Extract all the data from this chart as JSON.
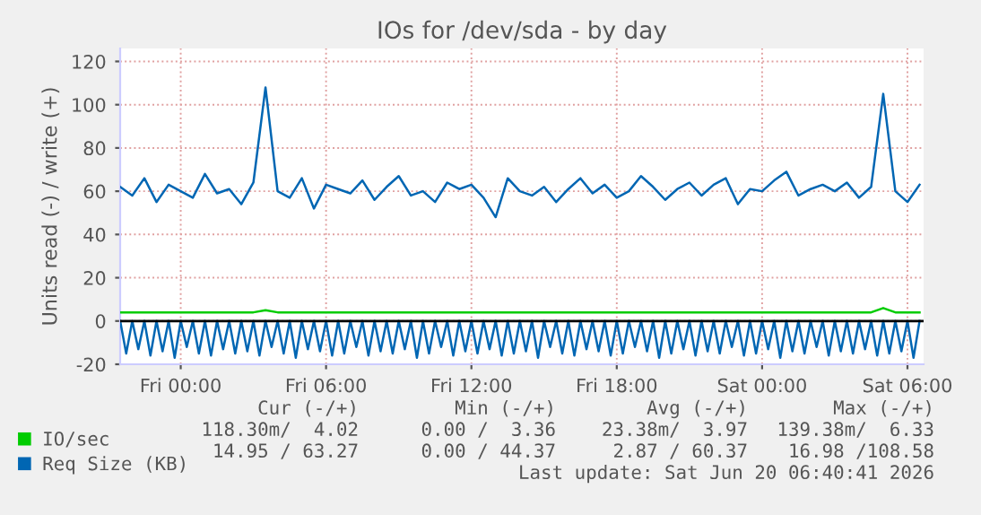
{
  "chart_data": {
    "type": "line",
    "title": "IOs for /dev/sda - by day",
    "ylabel": "Units read (-) / write (+)",
    "x": [
      "2026-06-18T21:30",
      "2026-06-18T22:00",
      "2026-06-18T22:30",
      "2026-06-18T23:00",
      "2026-06-18T23:30",
      "2026-06-19T00:00",
      "2026-06-19T00:30",
      "2026-06-19T01:00",
      "2026-06-19T01:30",
      "2026-06-19T02:00",
      "2026-06-19T02:30",
      "2026-06-19T03:00",
      "2026-06-19T03:30",
      "2026-06-19T04:00",
      "2026-06-19T04:30",
      "2026-06-19T05:00",
      "2026-06-19T05:30",
      "2026-06-19T06:00",
      "2026-06-19T06:30",
      "2026-06-19T07:00",
      "2026-06-19T07:30",
      "2026-06-19T08:00",
      "2026-06-19T08:30",
      "2026-06-19T09:00",
      "2026-06-19T09:30",
      "2026-06-19T10:00",
      "2026-06-19T10:30",
      "2026-06-19T11:00",
      "2026-06-19T11:30",
      "2026-06-19T12:00",
      "2026-06-19T12:30",
      "2026-06-19T13:00",
      "2026-06-19T13:30",
      "2026-06-19T14:00",
      "2026-06-19T14:30",
      "2026-06-19T15:00",
      "2026-06-19T15:30",
      "2026-06-19T16:00",
      "2026-06-19T16:30",
      "2026-06-19T17:00",
      "2026-06-19T17:30",
      "2026-06-19T18:00",
      "2026-06-19T18:30",
      "2026-06-19T19:00",
      "2026-06-19T19:30",
      "2026-06-19T20:00",
      "2026-06-19T20:30",
      "2026-06-19T21:00",
      "2026-06-19T21:30",
      "2026-06-19T22:00",
      "2026-06-19T22:30",
      "2026-06-19T23:00",
      "2026-06-19T23:30",
      "2026-06-20T00:00",
      "2026-06-20T00:30",
      "2026-06-20T01:00",
      "2026-06-20T01:30",
      "2026-06-20T02:00",
      "2026-06-20T02:30",
      "2026-06-20T03:00",
      "2026-06-20T03:30",
      "2026-06-20T04:00",
      "2026-06-20T04:30",
      "2026-06-20T05:00",
      "2026-06-20T05:30",
      "2026-06-20T06:00",
      "2026-06-20T06:30"
    ],
    "series": [
      {
        "name": "IO/sec",
        "color": "#00cc00",
        "values": [
          4,
          4,
          4,
          4,
          4,
          4,
          4,
          4,
          4,
          4,
          4,
          4,
          5,
          4,
          4,
          4,
          4,
          4,
          4,
          4,
          4,
          4,
          4,
          4,
          4,
          4,
          4,
          4,
          4,
          4,
          4,
          4,
          4,
          4,
          4,
          4,
          4,
          4,
          4,
          4,
          4,
          4,
          4,
          4,
          4,
          4,
          4,
          4,
          4,
          4,
          4,
          4,
          4,
          4,
          4,
          4,
          4,
          4,
          4,
          4,
          4,
          4,
          4,
          6,
          4,
          4,
          4
        ]
      },
      {
        "name": "Req Size (KB)",
        "color": "#0066b3",
        "values": [
          62,
          58,
          66,
          55,
          63,
          60,
          57,
          68,
          59,
          61,
          54,
          64,
          108,
          60,
          57,
          66,
          52,
          63,
          61,
          59,
          65,
          56,
          62,
          67,
          58,
          60,
          55,
          64,
          61,
          63,
          57,
          48,
          66,
          60,
          58,
          62,
          55,
          61,
          66,
          59,
          63,
          57,
          60,
          67,
          62,
          56,
          61,
          64,
          58,
          63,
          66,
          54,
          61,
          60,
          65,
          69,
          58,
          61,
          63,
          60,
          64,
          57,
          62,
          105,
          60,
          55,
          63
        ]
      },
      {
        "color": "#0066b3",
        "x": [
          "2026-06-18T21:30",
          "2026-06-18T21:45",
          "2026-06-18T22:00",
          "2026-06-18T22:15",
          "2026-06-18T22:30",
          "2026-06-18T22:45",
          "2026-06-18T23:00",
          "2026-06-18T23:15",
          "2026-06-18T23:30",
          "2026-06-18T23:45",
          "2026-06-19T00:00",
          "2026-06-19T00:15",
          "2026-06-19T00:30",
          "2026-06-19T00:45",
          "2026-06-19T01:00",
          "2026-06-19T01:15",
          "2026-06-19T01:30",
          "2026-06-19T01:45",
          "2026-06-19T02:00",
          "2026-06-19T02:15",
          "2026-06-19T02:30",
          "2026-06-19T02:45",
          "2026-06-19T03:00",
          "2026-06-19T03:15",
          "2026-06-19T03:30",
          "2026-06-19T03:45",
          "2026-06-19T04:00",
          "2026-06-19T04:15",
          "2026-06-19T04:30",
          "2026-06-19T04:45",
          "2026-06-19T05:00",
          "2026-06-19T05:15",
          "2026-06-19T05:30",
          "2026-06-19T05:45",
          "2026-06-19T06:00",
          "2026-06-19T06:15",
          "2026-06-19T06:30",
          "2026-06-19T06:45",
          "2026-06-19T07:00",
          "2026-06-19T07:15",
          "2026-06-19T07:30",
          "2026-06-19T07:45",
          "2026-06-19T08:00",
          "2026-06-19T08:15",
          "2026-06-19T08:30",
          "2026-06-19T08:45",
          "2026-06-19T09:00",
          "2026-06-19T09:15",
          "2026-06-19T09:30",
          "2026-06-19T09:45",
          "2026-06-19T10:00",
          "2026-06-19T10:15",
          "2026-06-19T10:30",
          "2026-06-19T10:45",
          "2026-06-19T11:00",
          "2026-06-19T11:15",
          "2026-06-19T11:30",
          "2026-06-19T11:45",
          "2026-06-19T12:00",
          "2026-06-19T12:15",
          "2026-06-19T12:30",
          "2026-06-19T12:45",
          "2026-06-19T13:00",
          "2026-06-19T13:15",
          "2026-06-19T13:30",
          "2026-06-19T13:45",
          "2026-06-19T14:00",
          "2026-06-19T14:15",
          "2026-06-19T14:30",
          "2026-06-19T14:45",
          "2026-06-19T15:00",
          "2026-06-19T15:15",
          "2026-06-19T15:30",
          "2026-06-19T15:45",
          "2026-06-19T16:00",
          "2026-06-19T16:15",
          "2026-06-19T16:30",
          "2026-06-19T16:45",
          "2026-06-19T17:00",
          "2026-06-19T17:15",
          "2026-06-19T17:30",
          "2026-06-19T17:45",
          "2026-06-19T18:00",
          "2026-06-19T18:15",
          "2026-06-19T18:30",
          "2026-06-19T18:45",
          "2026-06-19T19:00",
          "2026-06-19T19:15",
          "2026-06-19T19:30",
          "2026-06-19T19:45",
          "2026-06-19T20:00",
          "2026-06-19T20:15",
          "2026-06-19T20:30",
          "2026-06-19T20:45",
          "2026-06-19T21:00",
          "2026-06-19T21:15",
          "2026-06-19T21:30",
          "2026-06-19T21:45",
          "2026-06-19T22:00",
          "2026-06-19T22:15",
          "2026-06-19T22:30",
          "2026-06-19T22:45",
          "2026-06-19T23:00",
          "2026-06-19T23:15",
          "2026-06-19T23:30",
          "2026-06-19T23:45",
          "2026-06-20T00:00",
          "2026-06-20T00:15",
          "2026-06-20T00:30",
          "2026-06-20T00:45",
          "2026-06-20T01:00",
          "2026-06-20T01:15",
          "2026-06-20T01:30",
          "2026-06-20T01:45",
          "2026-06-20T02:00",
          "2026-06-20T02:15",
          "2026-06-20T02:30",
          "2026-06-20T02:45",
          "2026-06-20T03:00",
          "2026-06-20T03:15",
          "2026-06-20T03:30",
          "2026-06-20T03:45",
          "2026-06-20T04:00",
          "2026-06-20T04:15",
          "2026-06-20T04:30",
          "2026-06-20T04:45",
          "2026-06-20T05:00",
          "2026-06-20T05:15",
          "2026-06-20T05:30",
          "2026-06-20T05:45",
          "2026-06-20T06:00",
          "2026-06-20T06:15",
          "2026-06-20T06:30"
        ],
        "values": [
          0,
          -15,
          0,
          -13,
          0,
          -16,
          0,
          -14,
          0,
          -17,
          0,
          -12,
          0,
          -15,
          0,
          -16,
          0,
          -13,
          0,
          -15,
          0,
          -14,
          0,
          -16,
          0,
          -12,
          0,
          -15,
          0,
          -17,
          0,
          -13,
          0,
          -14,
          0,
          -16,
          0,
          -15,
          0,
          -12,
          0,
          -16,
          0,
          -14,
          0,
          -15,
          0,
          -13,
          0,
          -17,
          0,
          -15,
          0,
          -12,
          0,
          -16,
          0,
          -14,
          0,
          -15,
          0,
          -13,
          0,
          -16,
          0,
          -15,
          0,
          -14,
          0,
          -17,
          0,
          -12,
          0,
          -15,
          0,
          -16,
          0,
          -13,
          0,
          -14,
          0,
          -16,
          0,
          -15,
          0,
          -12,
          0,
          -14,
          0,
          -17,
          0,
          -15,
          0,
          -13,
          0,
          -16,
          0,
          -14,
          0,
          -15,
          0,
          -12,
          0,
          -16,
          0,
          -15,
          0,
          -13,
          0,
          -17,
          0,
          -14,
          0,
          -15,
          0,
          -12,
          0,
          -16,
          0,
          -14,
          0,
          -15,
          0,
          -13,
          0,
          -16,
          0,
          -15,
          0,
          -14,
          0,
          -17,
          0
        ]
      }
    ],
    "xlim": [
      "2026-06-18T21:30",
      "2026-06-20T06:40"
    ],
    "xticks": [
      {
        "value": "2026-06-19T00:00",
        "label": "Fri 00:00"
      },
      {
        "value": "2026-06-19T06:00",
        "label": "Fri 06:00"
      },
      {
        "value": "2026-06-19T12:00",
        "label": "Fri 12:00"
      },
      {
        "value": "2026-06-19T18:00",
        "label": "Fri 18:00"
      },
      {
        "value": "2026-06-20T00:00",
        "label": "Sat 00:00"
      },
      {
        "value": "2026-06-20T06:00",
        "label": "Sat 06:00"
      }
    ],
    "ylim": [
      -20,
      126
    ],
    "yticks": [
      -20,
      0,
      20,
      40,
      60,
      80,
      100,
      120
    ],
    "ref_lines": [
      {
        "axis": "y",
        "value": 0,
        "color": "#000000"
      }
    ],
    "grid": true,
    "legend": "bottom left",
    "annotations": [
      "Cur (-/+)",
      "Min (-/+)",
      "Avg (-/+)",
      "Max (-/+)",
      "118.30m/  4.02",
      "0.00 /  3.36",
      "23.38m/  3.97",
      "139.38m/  6.33",
      "14.95 / 63.27",
      "0.00 / 44.37",
      "2.87 / 60.37",
      "16.98 /108.58",
      "Last update: Sat Jun 20 06:40:41 2026"
    ]
  }
}
